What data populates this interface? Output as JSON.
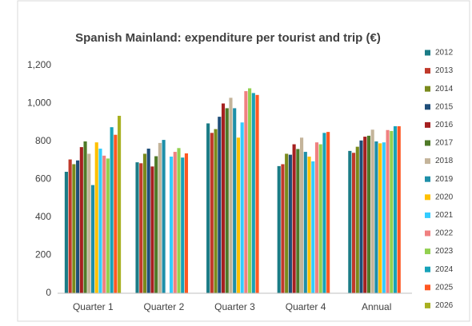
{
  "chart_data": {
    "type": "bar",
    "title": "Spanish Mainland: expenditure per tourist and trip (€)",
    "categories": [
      "Quarter 1",
      "Quarter 2",
      "Quarter 3",
      "Quarter 4",
      "Annual"
    ],
    "series": [
      {
        "name": "2012",
        "color": "#1b7c86",
        "values": [
          640,
          690,
          895,
          670,
          750
        ]
      },
      {
        "name": "2013",
        "color": "#c0392b",
        "values": [
          705,
          685,
          845,
          680,
          740
        ]
      },
      {
        "name": "2014",
        "color": "#7a8a1c",
        "values": [
          680,
          735,
          865,
          735,
          772
        ]
      },
      {
        "name": "2015",
        "color": "#1f4e79",
        "values": [
          700,
          762,
          930,
          730,
          805
        ]
      },
      {
        "name": "2016",
        "color": "#a52020",
        "values": [
          770,
          668,
          1000,
          785,
          825
        ]
      },
      {
        "name": "2017",
        "color": "#4f7a28",
        "values": [
          800,
          722,
          975,
          760,
          830
        ]
      },
      {
        "name": "2018",
        "color": "#c4b49a",
        "values": [
          735,
          792,
          1030,
          820,
          862
        ]
      },
      {
        "name": "2019",
        "color": "#1e8fa8",
        "values": [
          570,
          808,
          975,
          745,
          800
        ]
      },
      {
        "name": "2020",
        "color": "#ffc000",
        "values": [
          795,
          null,
          820,
          720,
          790
        ]
      },
      {
        "name": "2021",
        "color": "#33ccff",
        "values": [
          762,
          720,
          900,
          695,
          795
        ]
      },
      {
        "name": "2022",
        "color": "#f08080",
        "values": [
          725,
          745,
          1065,
          795,
          860
        ]
      },
      {
        "name": "2023",
        "color": "#92d050",
        "values": [
          710,
          765,
          1080,
          785,
          855
        ]
      },
      {
        "name": "2024",
        "color": "#17a2b8",
        "values": [
          875,
          715,
          1055,
          845,
          880
        ]
      },
      {
        "name": "2025",
        "color": "#ff5722",
        "values": [
          835,
          737,
          1045,
          850,
          880
        ]
      },
      {
        "name": "2026",
        "color": "#a8b020",
        "values": [
          935,
          null,
          null,
          null,
          null
        ]
      }
    ],
    "ylim": [
      0,
      1200
    ],
    "yticks": [
      0,
      200,
      400,
      600,
      800,
      {
        "value": 1000,
        "label": "1,000"
      },
      {
        "value": 1200,
        "label": "1,200"
      }
    ],
    "grid": false,
    "legend": "right"
  }
}
